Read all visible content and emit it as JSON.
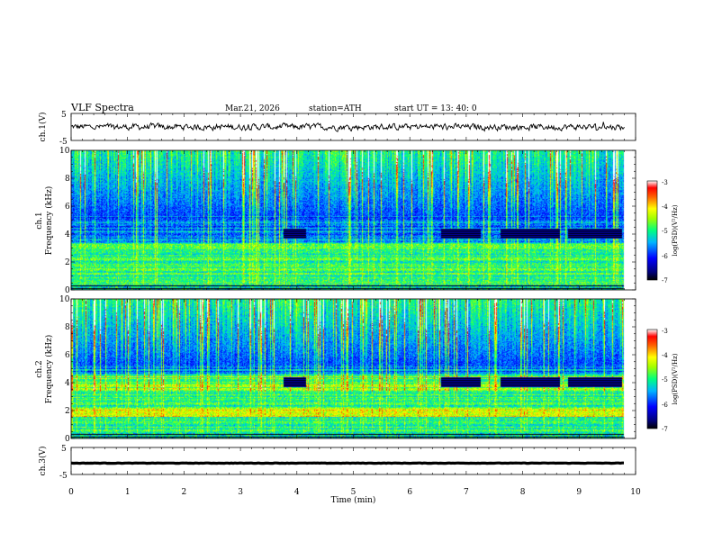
{
  "header": {
    "title": "VLF  Spectra",
    "date": "Mar.21, 2026",
    "station": "station=ATH",
    "start_ut": "start  UT  =   13: 40: 0"
  },
  "colors": {
    "waveform": "#000000",
    "axes": "#000000",
    "background": "#ffffff"
  },
  "chart_data": [
    {
      "type": "line",
      "panel": "ch1-waveform",
      "ylabel": "ch.1(V)",
      "ylim": [
        -5,
        5
      ],
      "yticks": [
        "5",
        "-5"
      ],
      "xlim": [
        0,
        10
      ],
      "x_end": 9.8,
      "description_of_trace": "noisy waveform centred near 0 V, amplitude about ±1.5 V",
      "y_mean": 0.0,
      "y_amplitude": 1.5
    },
    {
      "type": "heatmap",
      "panel": "ch1-spectrogram",
      "ylabel": "ch.1\nFrequency (kHz)",
      "ylim": [
        0,
        10
      ],
      "yticks": [
        "0",
        "2",
        "4",
        "6",
        "8",
        "10"
      ],
      "xlim": [
        0,
        10
      ],
      "x_end": 9.8,
      "colorbar": {
        "label": "log(PSD)(V²/Hz)",
        "range": [
          -7,
          -3
        ],
        "ticks": [
          "-3",
          "-4",
          "-5",
          "-6",
          "-7"
        ]
      },
      "quiet_blocks_min": [
        [
          3.75,
          4.15
        ],
        [
          6.55,
          7.25
        ],
        [
          7.6,
          8.65
        ],
        [
          8.8,
          9.75
        ]
      ],
      "quiet_block_khz": [
        3.7,
        4.4
      ]
    },
    {
      "type": "heatmap",
      "panel": "ch2-spectrogram",
      "ylabel": "ch.2\nFrequency (kHz)",
      "ylim": [
        0,
        10
      ],
      "yticks": [
        "0",
        "2",
        "4",
        "6",
        "8",
        "10"
      ],
      "xlim": [
        0,
        10
      ],
      "x_end": 9.8,
      "colorbar": {
        "label": "log(PSD)(V²/Hz)",
        "range": [
          -7,
          -3
        ],
        "ticks": [
          "-3",
          "-4",
          "-5",
          "-6",
          "-7"
        ]
      },
      "quiet_blocks_min": [
        [
          3.75,
          4.15
        ],
        [
          6.55,
          7.25
        ],
        [
          7.6,
          8.65
        ],
        [
          8.8,
          9.75
        ]
      ],
      "quiet_block_khz": [
        3.7,
        4.4
      ]
    },
    {
      "type": "line",
      "panel": "ch3-waveform",
      "ylabel": "ch.3(V)",
      "ylim": [
        -5,
        5
      ],
      "yticks": [
        "5",
        "-5"
      ],
      "xlim": [
        0,
        10
      ],
      "x_end": 9.8,
      "y_mean": -0.8,
      "y_amplitude": 0.15
    }
  ],
  "xaxis": {
    "label": "Time  (min)",
    "ticks": [
      "0",
      "1",
      "2",
      "3",
      "4",
      "5",
      "6",
      "7",
      "8",
      "9",
      "10"
    ]
  }
}
